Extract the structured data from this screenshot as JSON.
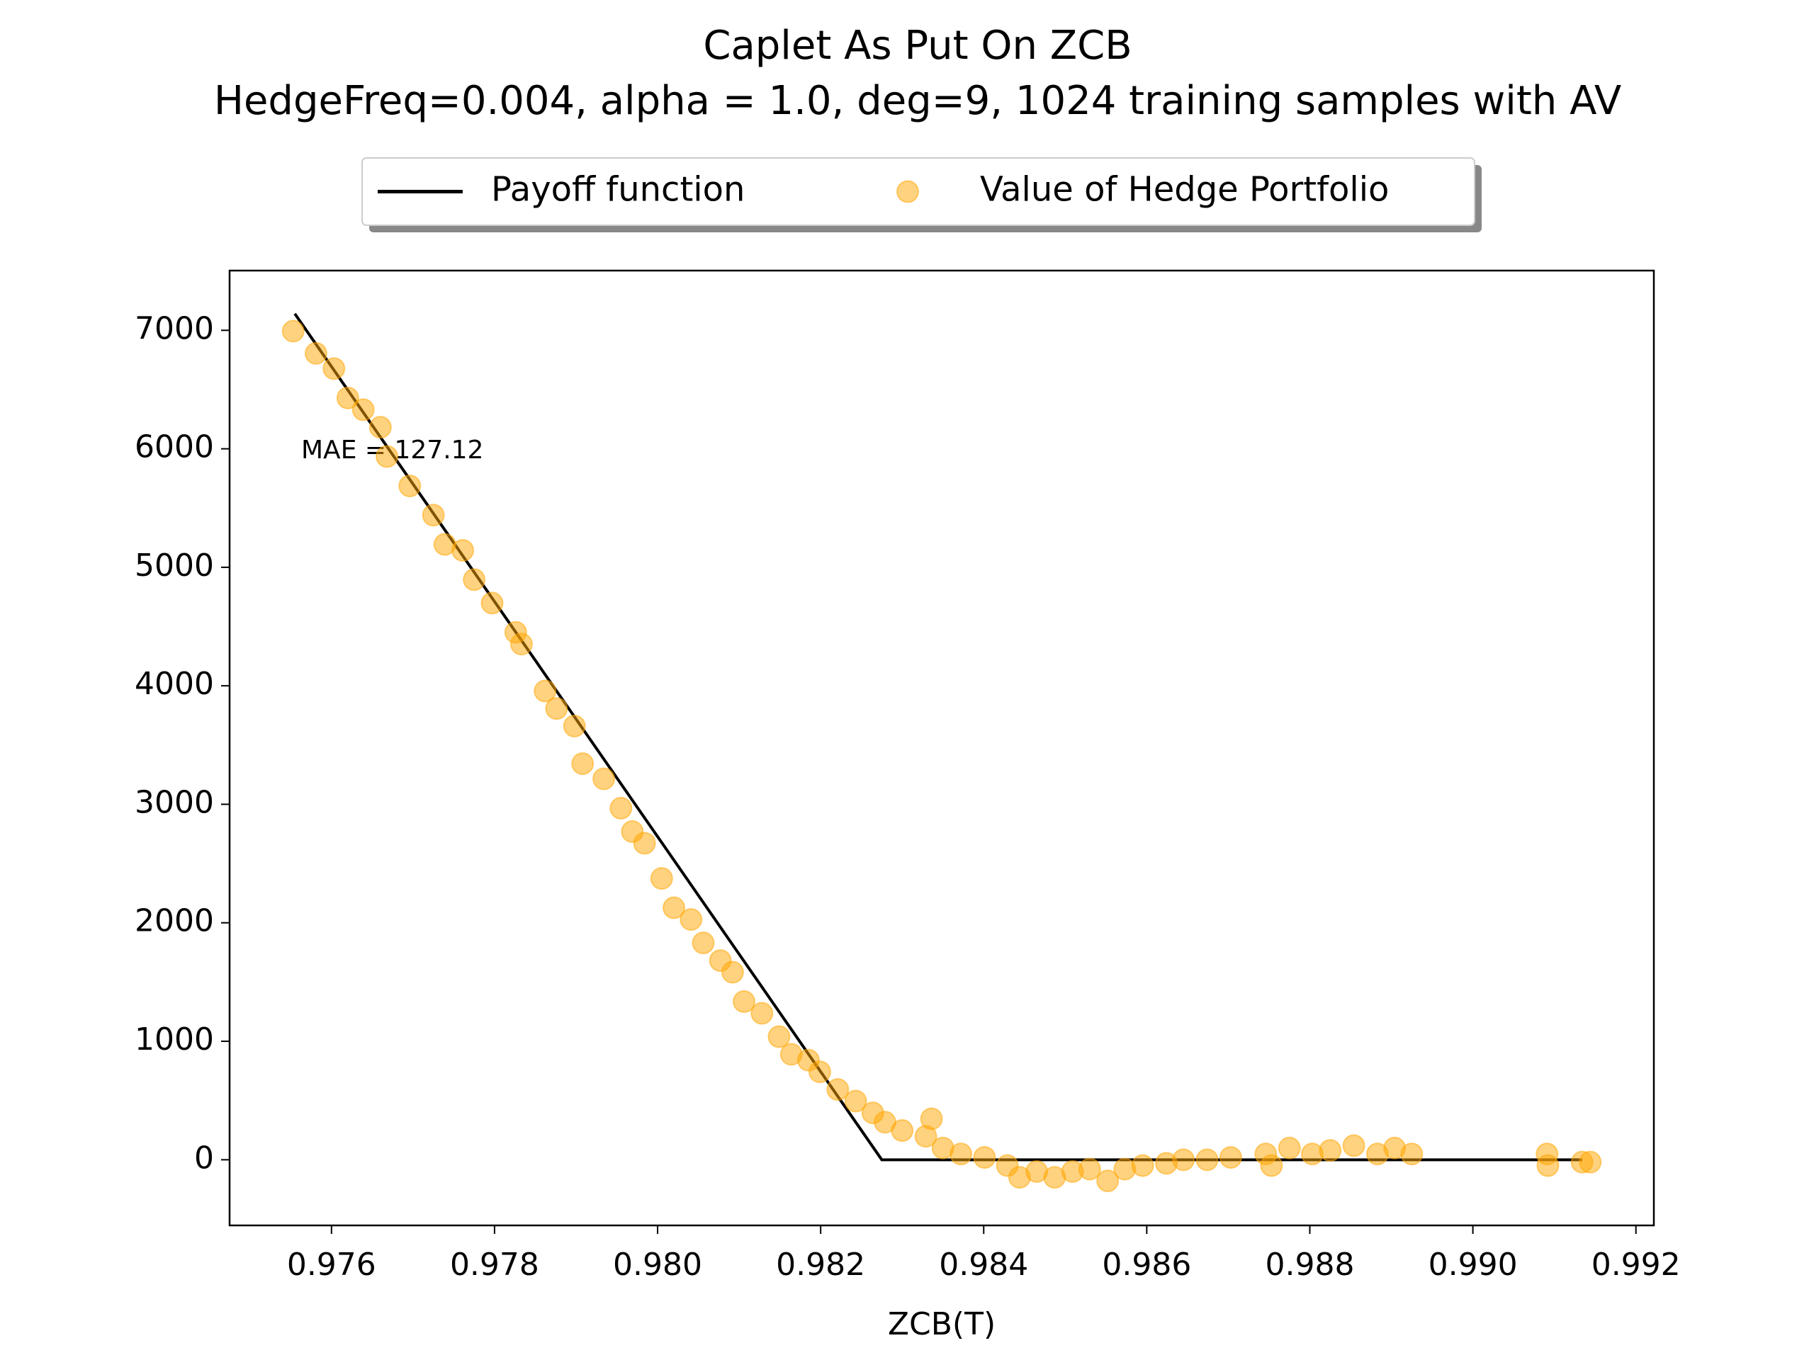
{
  "chart_data": {
    "type": "scatter",
    "title": "Caplet As Put On ZCB",
    "subtitle": "HedgeFreq=0.004, alpha = 1.0, deg=9, 1024 training samples with AV",
    "x_label": "ZCB(T)",
    "annotation": "MAE = 127.12",
    "legend": "upper center",
    "grid": false,
    "xlim": [
      0.97475,
      0.99222
    ],
    "ylim": [
      -554,
      7504
    ],
    "xticks": [
      0.976,
      0.978,
      {
        "value": 0.98,
        "label": "0.980"
      },
      0.982,
      0.984,
      0.986,
      0.988,
      {
        "value": 0.99,
        "label": "0.990"
      },
      0.992
    ],
    "yticks": [
      0,
      1000,
      2000,
      3000,
      4000,
      5000,
      6000,
      7000
    ],
    "series": [
      {
        "name": "Payoff function",
        "type": "line",
        "color": "#000000",
        "x": [
          0.97555,
          0.98275,
          0.99134
        ],
        "values": [
          7140,
          0,
          0
        ]
      },
      {
        "name": "Value of Hedge Portfolio",
        "type": "scatter",
        "color": "#ffa500",
        "x": [
          0.97553,
          0.97581,
          0.97603,
          0.9762,
          0.97639,
          0.9766,
          0.97668,
          0.97696,
          0.97725,
          0.97739,
          0.97761,
          0.97775,
          0.97797,
          0.97826,
          0.97833,
          0.97862,
          0.97876,
          0.97898,
          0.97908,
          0.97934,
          0.97955,
          0.97969,
          0.97984,
          0.98005,
          0.9802,
          0.98041,
          0.98056,
          0.98077,
          0.98092,
          0.98106,
          0.98128,
          0.98149,
          0.98164,
          0.98185,
          0.98199,
          0.98221,
          0.98243,
          0.98264,
          0.98279,
          0.983,
          0.98329,
          0.98336,
          0.9835,
          0.98372,
          0.98401,
          0.98429,
          0.98444,
          0.98465,
          0.98487,
          0.98509,
          0.9853,
          0.98552,
          0.98573,
          0.98595,
          0.98624,
          0.98645,
          0.98674,
          0.98703,
          0.98746,
          0.98753,
          0.98775,
          0.98803,
          0.98825,
          0.98854,
          0.98883,
          0.98904,
          0.98925,
          0.99091,
          0.99092,
          0.99134,
          0.99144
        ],
        "values": [
          6993,
          6805,
          6677,
          6429,
          6330,
          6182,
          5935,
          5687,
          5440,
          5193,
          5143,
          4896,
          4698,
          4451,
          4352,
          3956,
          3808,
          3660,
          3343,
          3215,
          2967,
          2770,
          2671,
          2374,
          2127,
          2028,
          1830,
          1681,
          1583,
          1335,
          1236,
          1039,
          890,
          841,
          742,
          593,
          495,
          396,
          317,
          247,
          198,
          346,
          99,
          49,
          20,
          -49,
          -148,
          -99,
          -148,
          -99,
          -79,
          -178,
          -79,
          -49,
          -30,
          0,
          0,
          20,
          49,
          -49,
          99,
          49,
          79,
          119,
          49,
          99,
          49,
          49,
          -49,
          -20,
          -20
        ]
      }
    ]
  }
}
